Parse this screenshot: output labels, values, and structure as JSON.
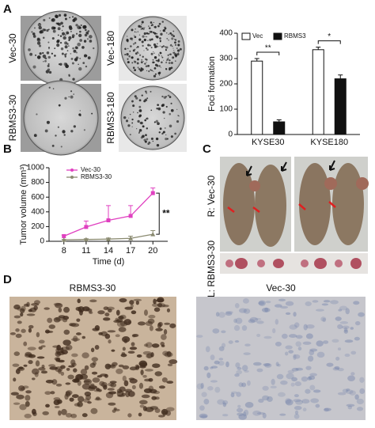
{
  "panel_labels": [
    "A",
    "B",
    "C",
    "D"
  ],
  "colony_labels": [
    "Vec-30",
    "Vec-180",
    "RBMS3-30",
    "RBMS3-180"
  ],
  "mouse_labels": [
    "R: Vec-30",
    "L: RBMS3-30"
  ],
  "histology_labels": [
    "RBMS3-30",
    "Vec-30"
  ],
  "chart_data": [
    {
      "type": "bar",
      "ylabel": "Foci formation",
      "categories": [
        "KYSE30",
        "KYSE180"
      ],
      "series": [
        {
          "name": "Vec",
          "color": "#ffffff",
          "values": [
            290,
            335
          ],
          "errors": [
            10,
            10
          ]
        },
        {
          "name": "RBMS3",
          "color": "#111111",
          "values": [
            50,
            220
          ],
          "errors": [
            8,
            15
          ]
        }
      ],
      "annotations": [
        "**",
        "*"
      ],
      "ylim": [
        0,
        400
      ],
      "yticks": [
        0,
        100,
        200,
        300,
        400
      ],
      "legend": "top"
    },
    {
      "type": "line",
      "ylabel": "Tumor volume (mm³)",
      "xlabel": "Time (d)",
      "x": [
        8,
        11,
        14,
        17,
        20
      ],
      "series": [
        {
          "name": "Vec-30",
          "color": "#e040c0",
          "values": [
            70,
            195,
            285,
            345,
            655
          ],
          "errors": [
            15,
            80,
            200,
            140,
            70
          ]
        },
        {
          "name": "RBMS3-30",
          "color": "#8a8a70",
          "values": [
            20,
            25,
            30,
            40,
            95
          ],
          "errors": [
            5,
            10,
            15,
            30,
            50
          ]
        }
      ],
      "annotations": [
        "**"
      ],
      "xlim": [
        6,
        22
      ],
      "xticks": [
        8,
        11,
        14,
        17,
        20
      ],
      "ylim": [
        0,
        1000
      ],
      "yticks": [
        0,
        200,
        400,
        600,
        800,
        1000
      ],
      "legend": "top-left"
    }
  ]
}
